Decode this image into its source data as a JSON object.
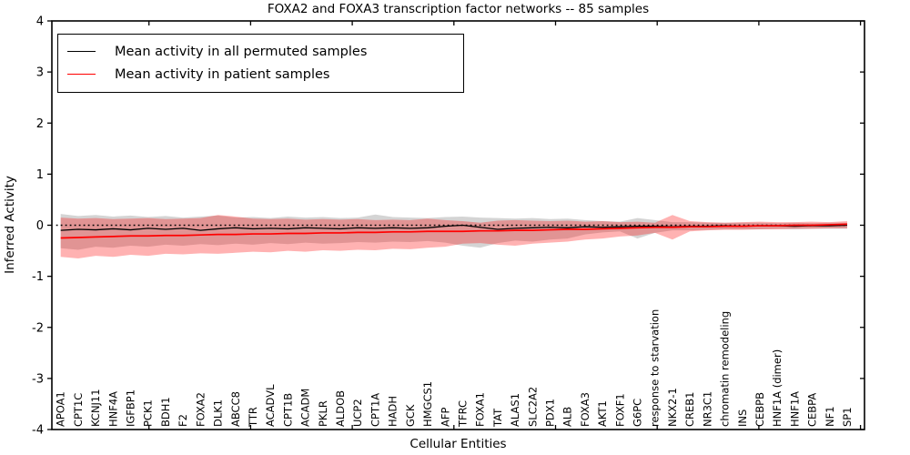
{
  "title": "FOXA2 and FOXA3 transcription factor networks -- 85 samples",
  "axes": {
    "x_label": "Cellular Entities",
    "y_label": "Inferred Activity",
    "y_ticks": [
      "4",
      "3",
      "2",
      "1",
      "0",
      "-1",
      "-2",
      "-3",
      "-4"
    ]
  },
  "legend": {
    "items": [
      {
        "label": "Mean activity in all permuted samples",
        "color": "#000000"
      },
      {
        "label": "Mean activity in patient samples",
        "color": "#ff0000"
      }
    ]
  },
  "colors": {
    "permuted_line": "#000000",
    "patient_line": "#ff0000",
    "permuted_band": "rgba(120,120,120,0.32)",
    "patient_band": "rgba(255,0,0,0.30)",
    "zero_line": "#000000"
  },
  "chart_data": {
    "type": "line",
    "title": "FOXA2 and FOXA3 transcription factor networks -- 85 samples",
    "xlabel": "Cellular Entities",
    "ylabel": "Inferred Activity",
    "ylim": [
      -4,
      4
    ],
    "grid": false,
    "legend_position": "upper left",
    "zero_line": {
      "y": 0,
      "style": "dotted",
      "color": "#000000"
    },
    "categories": [
      "APOA1",
      "CPT1C",
      "KCNJ11",
      "HNF4A",
      "IGFBP1",
      "PCK1",
      "BDH1",
      "F2",
      "FOXA2",
      "DLK1",
      "ABCC8",
      "TTR",
      "ACADVL",
      "CPT1B",
      "ACADM",
      "PKLR",
      "ALDOB",
      "UCP2",
      "CPT1A",
      "HADH",
      "GCK",
      "HMGCS1",
      "AFP",
      "TFRC",
      "FOXA1",
      "TAT",
      "ALAS1",
      "SLC2A2",
      "PDX1",
      "ALB",
      "FOXA3",
      "AKT1",
      "FOXF1",
      "G6PC",
      "response to starvation",
      "NKX2-1",
      "CREB1",
      "NR3C1",
      "chromatin remodeling",
      "INS",
      "CEBPB",
      "HNF1A (dimer)",
      "HNF1A",
      "CEBPA",
      "NF1",
      "SP1"
    ],
    "series": [
      {
        "name": "Mean activity in all permuted samples",
        "color": "#000000",
        "values": [
          -0.1,
          -0.08,
          -0.09,
          -0.07,
          -0.09,
          -0.06,
          -0.08,
          -0.06,
          -0.1,
          -0.07,
          -0.05,
          -0.07,
          -0.06,
          -0.07,
          -0.05,
          -0.06,
          -0.07,
          -0.05,
          -0.06,
          -0.05,
          -0.06,
          -0.05,
          -0.02,
          0.0,
          -0.04,
          -0.08,
          -0.06,
          -0.05,
          -0.04,
          -0.05,
          -0.03,
          -0.04,
          -0.03,
          -0.02,
          -0.02,
          -0.03,
          -0.02,
          -0.02,
          -0.01,
          -0.02,
          -0.01,
          -0.01,
          -0.02,
          -0.01,
          -0.01,
          0.0
        ]
      },
      {
        "name": "Mean activity in patient samples",
        "color": "#ff0000",
        "values": [
          -0.25,
          -0.24,
          -0.23,
          -0.22,
          -0.21,
          -0.21,
          -0.2,
          -0.2,
          -0.19,
          -0.18,
          -0.18,
          -0.17,
          -0.17,
          -0.16,
          -0.16,
          -0.15,
          -0.15,
          -0.14,
          -0.14,
          -0.13,
          -0.13,
          -0.12,
          -0.12,
          -0.12,
          -0.11,
          -0.11,
          -0.1,
          -0.1,
          -0.09,
          -0.08,
          -0.08,
          -0.07,
          -0.06,
          -0.05,
          -0.04,
          -0.04,
          -0.03,
          -0.03,
          -0.02,
          -0.02,
          -0.01,
          -0.01,
          0.0,
          0.0,
          0.01,
          0.02
        ]
      }
    ],
    "bands": [
      {
        "name": "permuted-range",
        "color": "rgba(120,120,120,0.32)",
        "upper": [
          0.22,
          0.18,
          0.2,
          0.17,
          0.19,
          0.16,
          0.18,
          0.15,
          0.17,
          0.19,
          0.15,
          0.16,
          0.14,
          0.17,
          0.15,
          0.16,
          0.14,
          0.15,
          0.21,
          0.16,
          0.15,
          0.14,
          0.16,
          0.17,
          0.15,
          0.14,
          0.13,
          0.14,
          0.12,
          0.13,
          0.1,
          0.08,
          0.07,
          0.14,
          0.1,
          0.06,
          0.06,
          0.05,
          0.05,
          0.05,
          0.05,
          0.04,
          0.05,
          0.04,
          0.05,
          0.05
        ],
        "lower": [
          -0.45,
          -0.48,
          -0.42,
          -0.44,
          -0.4,
          -0.42,
          -0.38,
          -0.4,
          -0.37,
          -0.39,
          -0.36,
          -0.38,
          -0.35,
          -0.37,
          -0.34,
          -0.36,
          -0.35,
          -0.33,
          -0.34,
          -0.32,
          -0.33,
          -0.31,
          -0.34,
          -0.4,
          -0.44,
          -0.35,
          -0.3,
          -0.32,
          -0.28,
          -0.26,
          -0.18,
          -0.14,
          -0.12,
          -0.26,
          -0.15,
          -0.1,
          -0.1,
          -0.09,
          -0.08,
          -0.08,
          -0.08,
          -0.07,
          -0.08,
          -0.07,
          -0.07,
          -0.07
        ]
      },
      {
        "name": "patient-range",
        "color": "rgba(255,0,0,0.30)",
        "upper": [
          0.15,
          0.13,
          0.14,
          0.12,
          0.13,
          0.14,
          0.12,
          0.13,
          0.14,
          0.2,
          0.17,
          0.13,
          0.12,
          0.13,
          0.11,
          0.12,
          0.11,
          0.12,
          0.1,
          0.11,
          0.1,
          0.13,
          0.1,
          0.08,
          0.05,
          0.09,
          0.1,
          0.09,
          0.08,
          0.09,
          0.07,
          0.08,
          0.06,
          0.07,
          0.05,
          0.2,
          0.08,
          0.06,
          0.05,
          0.06,
          0.07,
          0.06,
          0.06,
          0.07,
          0.06,
          0.08
        ],
        "lower": [
          -0.62,
          -0.65,
          -0.6,
          -0.62,
          -0.58,
          -0.6,
          -0.56,
          -0.57,
          -0.55,
          -0.56,
          -0.54,
          -0.52,
          -0.53,
          -0.5,
          -0.52,
          -0.49,
          -0.5,
          -0.48,
          -0.49,
          -0.46,
          -0.47,
          -0.44,
          -0.42,
          -0.36,
          -0.35,
          -0.38,
          -0.4,
          -0.36,
          -0.34,
          -0.32,
          -0.28,
          -0.26,
          -0.22,
          -0.2,
          -0.15,
          -0.28,
          -0.12,
          -0.1,
          -0.09,
          -0.09,
          -0.08,
          -0.08,
          -0.07,
          -0.07,
          -0.06,
          -0.06
        ]
      }
    ]
  }
}
